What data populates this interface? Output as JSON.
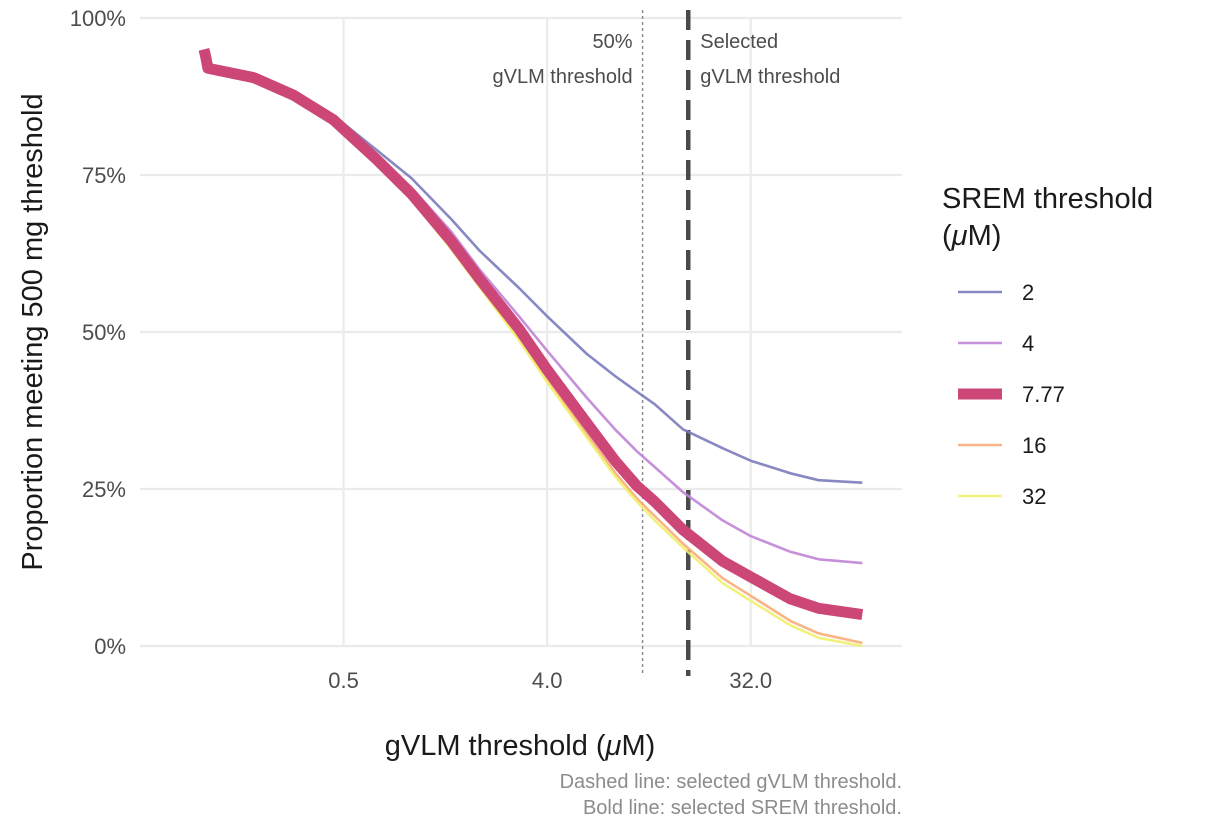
{
  "chart_data": {
    "type": "line",
    "xlabel": "gVLM threshold (μM)",
    "xlabel_parts": {
      "before": "gVLM threshold (",
      "mu": "μ",
      "after": "M)"
    },
    "ylabel": "Proportion meeting 500 mg threshold",
    "x_scale": "log2",
    "xlim": [
      0.0625,
      150
    ],
    "ylim": [
      0,
      1
    ],
    "x_ticks": [
      0.5,
      4.0,
      32.0
    ],
    "x_tick_labels": [
      "0.5",
      "4.0",
      "32.0"
    ],
    "y_ticks": [
      0,
      0.25,
      0.5,
      0.75,
      1.0
    ],
    "y_tick_labels": [
      "0%",
      "25%",
      "50%",
      "75%",
      "100%"
    ],
    "grid": true,
    "vlines": [
      {
        "x": 10.6,
        "style": "dotted",
        "label_lines": [
          "50%",
          "gVLM threshold"
        ],
        "label_side": "left"
      },
      {
        "x": 16.9,
        "style": "dashed",
        "label_lines": [
          "Selected",
          "gVLM threshold"
        ],
        "label_side": "right"
      }
    ],
    "legend": {
      "title_line1": "SREM threshold",
      "title_line2": {
        "before": "(",
        "mu": "μ",
        "after": "M)"
      },
      "placement": "right"
    },
    "caption_lines": [
      "Dashed line: selected gVLM threshold.",
      "Bold line: selected SREM threshold."
    ],
    "series": [
      {
        "name": "2",
        "color": "#7b7bbd",
        "bold": false,
        "x": [
          0.125,
          0.2,
          0.3,
          0.45,
          0.7,
          1,
          1.5,
          2,
          3,
          4,
          6,
          8,
          10,
          12,
          16,
          24,
          32,
          48,
          64,
          100
        ],
        "y": [
          0.92,
          0.905,
          0.88,
          0.845,
          0.79,
          0.745,
          0.68,
          0.63,
          0.57,
          0.525,
          0.465,
          0.43,
          0.405,
          0.385,
          0.345,
          0.315,
          0.295,
          0.275,
          0.264,
          0.26
        ]
      },
      {
        "name": "4",
        "color": "#c084d6",
        "bold": false,
        "x": [
          0.125,
          0.2,
          0.3,
          0.45,
          0.7,
          1,
          1.5,
          2,
          3,
          4,
          6,
          8,
          10,
          12,
          16,
          24,
          32,
          48,
          64,
          100
        ],
        "y": [
          0.92,
          0.905,
          0.878,
          0.84,
          0.78,
          0.73,
          0.66,
          0.6,
          0.525,
          0.47,
          0.395,
          0.345,
          0.31,
          0.285,
          0.245,
          0.2,
          0.175,
          0.15,
          0.138,
          0.132
        ]
      },
      {
        "name": "7.77",
        "color": "#cc4778",
        "bold": true,
        "x": [
          0.12,
          0.122,
          0.125,
          0.2,
          0.3,
          0.45,
          0.7,
          1,
          1.5,
          2,
          3,
          4,
          6,
          8,
          10,
          12,
          16,
          24,
          32,
          48,
          64,
          100
        ],
        "y": [
          0.95,
          0.94,
          0.92,
          0.905,
          0.877,
          0.838,
          0.775,
          0.72,
          0.645,
          0.585,
          0.505,
          0.44,
          0.355,
          0.295,
          0.255,
          0.23,
          0.185,
          0.135,
          0.11,
          0.075,
          0.06,
          0.05
        ]
      },
      {
        "name": "16",
        "color": "#f9ad7a",
        "bold": false,
        "x": [
          0.125,
          0.2,
          0.3,
          0.45,
          0.7,
          1,
          1.5,
          2,
          3,
          4,
          6,
          8,
          10,
          12,
          16,
          24,
          32,
          48,
          64,
          100
        ],
        "y": [
          0.918,
          0.902,
          0.874,
          0.835,
          0.77,
          0.713,
          0.635,
          0.575,
          0.49,
          0.425,
          0.337,
          0.276,
          0.235,
          0.207,
          0.163,
          0.108,
          0.08,
          0.04,
          0.02,
          0.005
        ]
      },
      {
        "name": "32",
        "color": "#f0f06e",
        "bold": false,
        "x": [
          0.125,
          0.2,
          0.3,
          0.45,
          0.7,
          1,
          1.5,
          2,
          3,
          4,
          6,
          8,
          10,
          12,
          16,
          24,
          32,
          48,
          64,
          100
        ],
        "y": [
          0.917,
          0.901,
          0.873,
          0.833,
          0.768,
          0.711,
          0.632,
          0.572,
          0.487,
          0.42,
          0.332,
          0.27,
          0.23,
          0.2,
          0.157,
          0.1,
          0.072,
          0.033,
          0.013,
          0.0
        ]
      }
    ]
  }
}
